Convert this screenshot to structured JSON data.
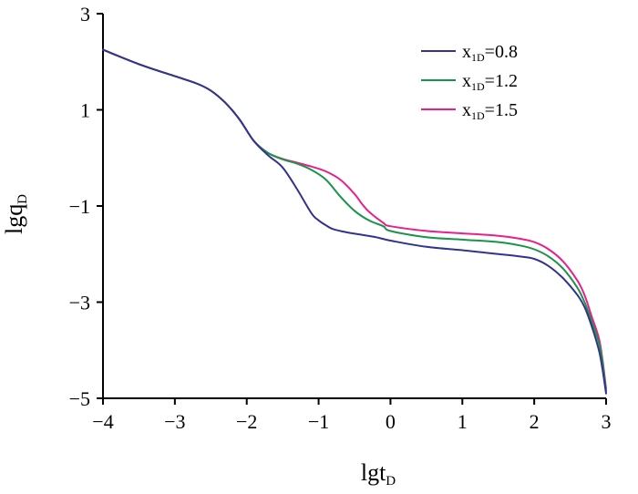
{
  "chart_data": {
    "type": "line",
    "xlabel": {
      "base": "lgt",
      "sub": "D"
    },
    "ylabel": {
      "base": "lgq",
      "sub": "D"
    },
    "xlim": [
      -4,
      3
    ],
    "ylim": [
      -5,
      3
    ],
    "x_ticks": [
      -4,
      -3,
      -2,
      -1,
      0,
      1,
      2,
      3
    ],
    "x_tick_labels": [
      "−4",
      "−3",
      "−2",
      "−1",
      "0",
      "1",
      "2",
      "3"
    ],
    "y_ticks": [
      3,
      1,
      -1,
      -3,
      -5
    ],
    "y_tick_labels": [
      "3",
      "1",
      "−1",
      "−3",
      "−5"
    ],
    "grid": false,
    "legend_position": "top-right",
    "series": [
      {
        "name": "x1D=0.8",
        "legend": {
          "base": "x",
          "sub": "1D",
          "value": "=0.8"
        },
        "color": "#33338f",
        "x": [
          -4,
          -3.5,
          -3,
          -2.7,
          -2.5,
          -2.3,
          -2.1,
          -1.9,
          -1.7,
          -1.5,
          -1.3,
          -1.1,
          -1.0,
          -0.9,
          -0.8,
          -0.6,
          -0.4,
          -0.2,
          0,
          0.5,
          1.0,
          1.5,
          1.8,
          2.0,
          2.2,
          2.4,
          2.6,
          2.7,
          2.8,
          2.9,
          2.95,
          3.0
        ],
        "y": [
          2.25,
          1.95,
          1.7,
          1.55,
          1.4,
          1.15,
          0.8,
          0.35,
          0.05,
          -0.2,
          -0.65,
          -1.15,
          -1.3,
          -1.4,
          -1.48,
          -1.55,
          -1.6,
          -1.65,
          -1.72,
          -1.85,
          -1.92,
          -2.0,
          -2.05,
          -2.1,
          -2.25,
          -2.5,
          -2.85,
          -3.1,
          -3.5,
          -4.0,
          -4.4,
          -4.9
        ]
      },
      {
        "name": "x1D=1.2",
        "legend": {
          "base": "x",
          "sub": "1D",
          "value": "=1.2"
        },
        "color": "#1a9448",
        "x": [
          -4,
          -3.5,
          -3,
          -2.7,
          -2.5,
          -2.3,
          -2.1,
          -1.9,
          -1.7,
          -1.5,
          -1.3,
          -1.1,
          -0.9,
          -0.7,
          -0.5,
          -0.3,
          -0.1,
          0,
          0.5,
          1.0,
          1.5,
          1.8,
          2.0,
          2.2,
          2.4,
          2.6,
          2.7,
          2.8,
          2.9,
          2.95,
          3.0
        ],
        "y": [
          2.25,
          1.95,
          1.7,
          1.55,
          1.4,
          1.15,
          0.8,
          0.35,
          0.1,
          -0.03,
          -0.12,
          -0.25,
          -0.45,
          -0.8,
          -1.1,
          -1.3,
          -1.42,
          -1.52,
          -1.65,
          -1.7,
          -1.75,
          -1.82,
          -1.9,
          -2.05,
          -2.3,
          -2.7,
          -3.0,
          -3.4,
          -3.85,
          -4.25,
          -4.85
        ]
      },
      {
        "name": "x1D=1.5",
        "legend": {
          "base": "x",
          "sub": "1D",
          "value": "=1.5"
        },
        "color": "#e8208b",
        "x": [
          -4,
          -3.5,
          -3,
          -2.7,
          -2.5,
          -2.3,
          -2.1,
          -1.9,
          -1.7,
          -1.5,
          -1.3,
          -1.1,
          -0.9,
          -0.7,
          -0.5,
          -0.4,
          -0.3,
          -0.1,
          0,
          0.5,
          1.0,
          1.5,
          1.8,
          2.0,
          2.2,
          2.4,
          2.6,
          2.7,
          2.8,
          2.9,
          2.95,
          3.0
        ],
        "y": [
          2.25,
          1.95,
          1.7,
          1.55,
          1.4,
          1.15,
          0.8,
          0.35,
          0.1,
          -0.02,
          -0.1,
          -0.18,
          -0.28,
          -0.45,
          -0.75,
          -0.95,
          -1.12,
          -1.35,
          -1.42,
          -1.52,
          -1.57,
          -1.62,
          -1.68,
          -1.75,
          -1.9,
          -2.15,
          -2.55,
          -2.85,
          -3.3,
          -3.75,
          -4.2,
          -4.8
        ]
      }
    ]
  }
}
